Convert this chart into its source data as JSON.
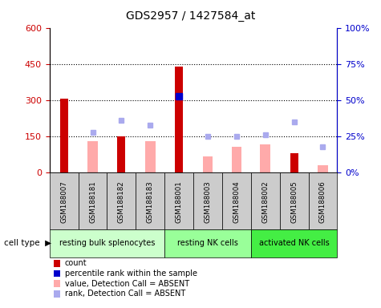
{
  "title": "GDS2957 / 1427584_at",
  "samples": [
    "GSM188007",
    "GSM188181",
    "GSM188182",
    "GSM188183",
    "GSM188001",
    "GSM188003",
    "GSM188004",
    "GSM188002",
    "GSM188005",
    "GSM188006"
  ],
  "cell_type_groups": [
    {
      "label": "resting bulk splenocytes",
      "start": 0,
      "end": 4,
      "color": "#ccffcc"
    },
    {
      "label": "resting NK cells",
      "start": 4,
      "end": 7,
      "color": "#99ff99"
    },
    {
      "label": "activated NK cells",
      "start": 7,
      "end": 10,
      "color": "#44ee44"
    }
  ],
  "count_values": [
    305,
    null,
    150,
    null,
    440,
    null,
    null,
    null,
    80,
    null
  ],
  "absent_value_bars": [
    null,
    130,
    null,
    130,
    null,
    65,
    105,
    115,
    null,
    30
  ],
  "percentile_rank_left": [
    null,
    null,
    null,
    null,
    315,
    null,
    null,
    null,
    null,
    null
  ],
  "absent_rank_left": [
    null,
    165,
    215,
    195,
    null,
    150,
    150,
    155,
    210,
    105
  ],
  "ylim_left": [
    0,
    600
  ],
  "ylim_right": [
    0,
    100
  ],
  "yticks_left": [
    0,
    150,
    300,
    450,
    600
  ],
  "ytick_labels_left": [
    "0",
    "150",
    "300",
    "450",
    "600"
  ],
  "yticks_right": [
    0,
    25,
    50,
    75,
    100
  ],
  "ytick_labels_right": [
    "0%",
    "25%",
    "50%",
    "75%",
    "100%"
  ],
  "hlines": [
    150,
    300,
    450
  ],
  "count_color": "#cc0000",
  "absent_bar_color": "#ffaaaa",
  "percentile_dot_color": "#0000cc",
  "absent_dot_color": "#aaaaee",
  "bg_color_sample": "#cccccc",
  "legend_items": [
    {
      "label": "count",
      "color": "#cc0000",
      "type": "square"
    },
    {
      "label": "percentile rank within the sample",
      "color": "#0000cc",
      "type": "square"
    },
    {
      "label": "value, Detection Call = ABSENT",
      "color": "#ffaaaa",
      "type": "square"
    },
    {
      "label": "rank, Detection Call = ABSENT",
      "color": "#aaaaee",
      "type": "square"
    }
  ]
}
